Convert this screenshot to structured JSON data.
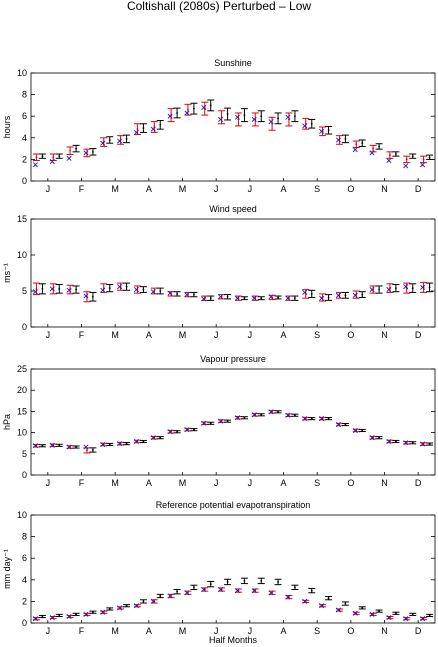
{
  "figure": {
    "title": "Coltishall (2080s) Perturbed – Low",
    "xlabel": "Half Months"
  },
  "colors": {
    "observed": "#e8000b",
    "generated": "#000000",
    "cross": "#1e1eb4"
  },
  "chart_data": [
    {
      "type": "errorbar",
      "title": "Sunshine",
      "ylabel": "hours",
      "ylim": [
        0,
        10
      ],
      "yticks": [
        "0",
        "2",
        "4",
        "6",
        "8",
        "10"
      ],
      "xtick_labels": [
        "J",
        "F",
        "M",
        "A",
        "M",
        "J",
        "J",
        "A",
        "S",
        "O",
        "N",
        "D"
      ],
      "series": [
        {
          "values": [
            2.2,
            2.2,
            2.8,
            2.6,
            3.6,
            3.8,
            4.8,
            5.0,
            6.1,
            6.6,
            6.7,
            5.9,
            5.7,
            5.7,
            5.3,
            5.7,
            5.3,
            4.6,
            3.8,
            3.4,
            3.0,
            2.4,
            2.0,
            2.0
          ],
          "err": [
            0.3,
            0.3,
            0.35,
            0.35,
            0.4,
            0.4,
            0.5,
            0.5,
            0.6,
            0.5,
            0.6,
            0.6,
            0.6,
            0.6,
            0.6,
            0.6,
            0.5,
            0.4,
            0.4,
            0.3,
            0.3,
            0.3,
            0.3,
            0.3
          ]
        },
        {
          "values": [
            2.3,
            2.3,
            3.0,
            2.7,
            3.8,
            3.9,
            4.9,
            5.2,
            6.3,
            6.7,
            7.0,
            6.2,
            6.1,
            6.0,
            5.8,
            6.0,
            5.3,
            4.7,
            3.9,
            3.5,
            3.2,
            2.5,
            2.3,
            2.2
          ],
          "err": [
            0.2,
            0.2,
            0.3,
            0.3,
            0.3,
            0.35,
            0.4,
            0.4,
            0.45,
            0.5,
            0.5,
            0.55,
            0.6,
            0.5,
            0.5,
            0.5,
            0.4,
            0.35,
            0.35,
            0.3,
            0.25,
            0.2,
            0.2,
            0.2
          ]
        },
        {
          "values": [
            1.5,
            1.8,
            2.1,
            2.6,
            3.5,
            3.7,
            4.5,
            4.8,
            6.0,
            6.3,
            6.8,
            5.7,
            5.9,
            5.7,
            5.5,
            5.9,
            5.1,
            4.6,
            3.8,
            2.9,
            2.6,
            1.9,
            1.4,
            1.5
          ]
        }
      ]
    },
    {
      "type": "errorbar",
      "title": "Wind speed",
      "ylabel": "ms⁻¹",
      "ylim": [
        0,
        15
      ],
      "yticks": [
        "0",
        "5",
        "10",
        "15"
      ],
      "xtick_labels": [
        "J",
        "F",
        "M",
        "A",
        "M",
        "J",
        "J",
        "A",
        "S",
        "O",
        "N",
        "D"
      ],
      "series": [
        {
          "values": [
            5.3,
            5.3,
            5.2,
            4.2,
            5.4,
            5.6,
            5.2,
            5.0,
            4.6,
            4.5,
            4.0,
            4.2,
            4.0,
            4.0,
            4.1,
            4.0,
            4.6,
            4.1,
            4.4,
            4.5,
            5.2,
            5.4,
            5.4,
            5.5
          ],
          "err": [
            0.8,
            0.7,
            0.6,
            0.7,
            0.6,
            0.5,
            0.5,
            0.4,
            0.3,
            0.3,
            0.3,
            0.3,
            0.3,
            0.3,
            0.3,
            0.3,
            0.6,
            0.5,
            0.4,
            0.5,
            0.5,
            0.6,
            0.7,
            0.7
          ]
        },
        {
          "values": [
            5.3,
            5.3,
            5.2,
            4.2,
            5.4,
            5.6,
            5.2,
            5.0,
            4.6,
            4.5,
            4.0,
            4.2,
            4.0,
            4.0,
            4.1,
            4.0,
            4.6,
            4.1,
            4.4,
            4.5,
            5.2,
            5.4,
            5.4,
            5.5
          ],
          "err": [
            0.7,
            0.6,
            0.5,
            0.6,
            0.5,
            0.5,
            0.4,
            0.4,
            0.3,
            0.3,
            0.3,
            0.3,
            0.2,
            0.2,
            0.2,
            0.3,
            0.5,
            0.4,
            0.4,
            0.4,
            0.5,
            0.5,
            0.6,
            0.6
          ]
        },
        {
          "values": [
            4.9,
            5.3,
            5.1,
            4.3,
            5.1,
            5.6,
            5.2,
            4.9,
            4.7,
            4.5,
            3.9,
            4.2,
            4.0,
            4.0,
            4.2,
            4.0,
            4.8,
            4.0,
            4.4,
            4.4,
            5.2,
            5.2,
            5.6,
            5.5
          ]
        }
      ]
    },
    {
      "type": "errorbar",
      "title": "Vapour pressure",
      "ylabel": "hPa",
      "ylim": [
        0,
        25
      ],
      "yticks": [
        "0",
        "5",
        "10",
        "15",
        "20",
        "25"
      ],
      "xtick_labels": [
        "J",
        "F",
        "M",
        "A",
        "M",
        "J",
        "J",
        "A",
        "S",
        "O",
        "N",
        "D"
      ],
      "series": [
        {
          "values": [
            6.9,
            7.0,
            6.6,
            5.8,
            7.2,
            7.4,
            7.9,
            8.8,
            10.2,
            10.7,
            12.2,
            12.7,
            13.5,
            14.2,
            14.9,
            14.1,
            13.3,
            13.3,
            11.9,
            10.5,
            8.8,
            7.9,
            7.6,
            7.3
          ],
          "err": [
            0.3,
            0.3,
            0.3,
            0.6,
            0.3,
            0.3,
            0.3,
            0.3,
            0.3,
            0.3,
            0.3,
            0.3,
            0.3,
            0.3,
            0.3,
            0.3,
            0.3,
            0.3,
            0.3,
            0.3,
            0.3,
            0.3,
            0.3,
            0.3
          ]
        },
        {
          "values": [
            6.9,
            7.0,
            6.6,
            5.9,
            7.2,
            7.4,
            7.9,
            8.8,
            10.2,
            10.7,
            12.2,
            12.7,
            13.5,
            14.2,
            14.9,
            14.1,
            13.3,
            13.3,
            11.9,
            10.5,
            8.8,
            7.9,
            7.6,
            7.3
          ],
          "err": [
            0.25,
            0.25,
            0.25,
            0.5,
            0.25,
            0.25,
            0.25,
            0.25,
            0.25,
            0.25,
            0.25,
            0.25,
            0.25,
            0.25,
            0.25,
            0.25,
            0.25,
            0.25,
            0.25,
            0.25,
            0.25,
            0.25,
            0.25,
            0.25
          ]
        },
        {
          "values": [
            6.9,
            7.0,
            6.6,
            6.6,
            7.2,
            7.4,
            7.9,
            8.8,
            10.2,
            10.7,
            12.2,
            12.7,
            13.5,
            14.2,
            14.9,
            14.1,
            13.3,
            13.3,
            11.9,
            10.5,
            8.8,
            7.9,
            7.6,
            7.3
          ]
        }
      ]
    },
    {
      "type": "errorbar",
      "title": "Reference potential evapotranspiration",
      "ylabel": "mm day⁻¹",
      "ylim": [
        0,
        10
      ],
      "yticks": [
        "0",
        "2",
        "4",
        "6",
        "8",
        "10"
      ],
      "xtick_labels": [
        "J",
        "F",
        "M",
        "A",
        "M",
        "J",
        "J",
        "A",
        "S",
        "O",
        "N",
        "D"
      ],
      "series": [
        {
          "values": [
            0.4,
            0.5,
            0.6,
            0.8,
            1.0,
            1.4,
            1.6,
            2.0,
            2.5,
            2.8,
            3.1,
            3.1,
            3.0,
            3.0,
            2.8,
            2.4,
            2.0,
            1.6,
            1.2,
            0.9,
            0.8,
            0.5,
            0.4,
            0.4
          ],
          "err": [
            0.1,
            0.1,
            0.1,
            0.1,
            0.1,
            0.1,
            0.1,
            0.15,
            0.15,
            0.15,
            0.15,
            0.15,
            0.15,
            0.15,
            0.15,
            0.15,
            0.1,
            0.1,
            0.1,
            0.1,
            0.1,
            0.1,
            0.1,
            0.1
          ]
        },
        {
          "values": [
            0.6,
            0.7,
            0.8,
            1.0,
            1.3,
            1.6,
            2.0,
            2.5,
            2.9,
            3.3,
            3.6,
            3.8,
            3.9,
            3.9,
            3.8,
            3.3,
            3.0,
            2.3,
            1.8,
            1.4,
            1.1,
            0.9,
            0.8,
            0.7
          ],
          "err": [
            0.1,
            0.1,
            0.1,
            0.1,
            0.1,
            0.1,
            0.15,
            0.15,
            0.2,
            0.2,
            0.25,
            0.25,
            0.25,
            0.25,
            0.25,
            0.2,
            0.2,
            0.15,
            0.15,
            0.1,
            0.1,
            0.1,
            0.1,
            0.1
          ]
        },
        {
          "values": [
            0.4,
            0.5,
            0.6,
            0.8,
            1.0,
            1.4,
            1.6,
            2.0,
            2.5,
            2.8,
            3.1,
            3.1,
            3.0,
            3.0,
            2.8,
            2.4,
            2.0,
            1.6,
            1.2,
            0.9,
            0.8,
            0.5,
            0.4,
            0.4
          ]
        }
      ]
    }
  ]
}
